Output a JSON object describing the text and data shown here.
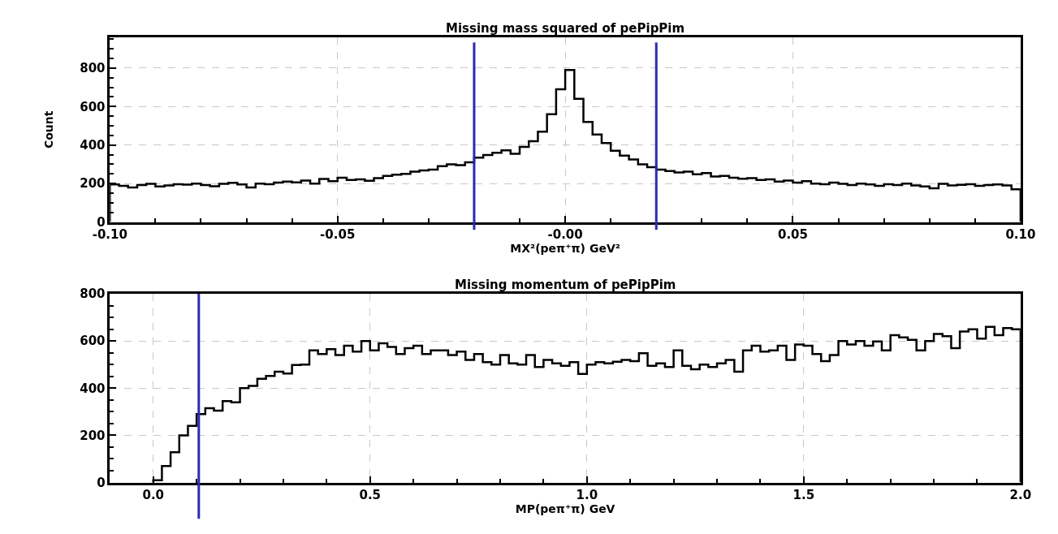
{
  "chart_data": [
    {
      "type": "histogram",
      "title": "Missing mass squared of pePipPim",
      "xlabel": "MX²(peπ⁺π) GeV²",
      "ylabel": "Count",
      "bins": [
        -0.1,
        -0.098,
        -0.096,
        -0.094,
        -0.092,
        -0.09,
        -0.088,
        -0.086,
        -0.084,
        -0.082,
        -0.08,
        -0.078,
        -0.076,
        -0.074,
        -0.072,
        -0.07,
        -0.068,
        -0.066,
        -0.064,
        -0.062,
        -0.06,
        -0.058,
        -0.056,
        -0.054,
        -0.052,
        -0.05,
        -0.048,
        -0.046,
        -0.044,
        -0.042,
        -0.04,
        -0.038,
        -0.036,
        -0.034,
        -0.032,
        -0.03,
        -0.028,
        -0.026,
        -0.024,
        -0.022,
        -0.02,
        -0.018,
        -0.016,
        -0.014,
        -0.012,
        -0.01,
        -0.008,
        -0.006,
        -0.004,
        -0.002,
        0,
        0.002,
        0.004,
        0.006,
        0.008,
        0.01,
        0.012,
        0.014,
        0.016,
        0.018,
        0.02,
        0.022,
        0.024,
        0.026,
        0.028,
        0.03,
        0.032,
        0.034,
        0.036,
        0.038,
        0.04,
        0.042,
        0.044,
        0.046,
        0.048,
        0.05,
        0.052,
        0.054,
        0.056,
        0.058,
        0.06,
        0.062,
        0.064,
        0.066,
        0.068,
        0.07,
        0.072,
        0.074,
        0.076,
        0.078,
        0.08,
        0.082,
        0.084,
        0.086,
        0.088,
        0.09,
        0.092,
        0.094,
        0.096,
        0.098,
        0.1
      ],
      "values": [
        195,
        188,
        180,
        192,
        198,
        185,
        190,
        196,
        194,
        200,
        192,
        186,
        198,
        204,
        195,
        180,
        200,
        196,
        205,
        210,
        206,
        215,
        200,
        224,
        212,
        230,
        218,
        222,
        214,
        228,
        240,
        246,
        250,
        262,
        268,
        272,
        290,
        300,
        296,
        310,
        335,
        348,
        360,
        372,
        355,
        390,
        420,
        470,
        560,
        690,
        790,
        640,
        520,
        455,
        410,
        370,
        345,
        325,
        300,
        285,
        272,
        265,
        258,
        262,
        248,
        254,
        236,
        240,
        230,
        225,
        228,
        218,
        222,
        210,
        215,
        205,
        212,
        200,
        196,
        205,
        198,
        192,
        200,
        195,
        188,
        196,
        192,
        200,
        190,
        185,
        175,
        198,
        190,
        193,
        196,
        188,
        192,
        195,
        190,
        170
      ],
      "color": "#000000",
      "xlim": [
        -0.1,
        0.1
      ],
      "ylim": [
        0,
        960
      ],
      "xticks": [
        {
          "value": -0.1,
          "label": "-0.10"
        },
        {
          "value": -0.05,
          "label": "-0.05"
        },
        {
          "value": 0,
          "label": "-0.00"
        },
        {
          "value": 0.05,
          "label": "0.05"
        },
        {
          "value": 0.1,
          "label": "0.10"
        }
      ],
      "yticks": [
        0,
        200,
        400,
        600,
        800
      ],
      "grid": true,
      "ref_lines": [
        {
          "axis": "x",
          "value": -0.02,
          "color": "#2a2ab0"
        },
        {
          "axis": "x",
          "value": 0.02,
          "color": "#2a2ab0"
        }
      ]
    },
    {
      "type": "histogram",
      "title": "Missing momentum of pePipPim",
      "xlabel": "MP(peπ⁺π) GeV",
      "bins": [
        0,
        0.02,
        0.04,
        0.06,
        0.08,
        0.1,
        0.12,
        0.14,
        0.16,
        0.18,
        0.2,
        0.22,
        0.24,
        0.26,
        0.28,
        0.3,
        0.32,
        0.34,
        0.36,
        0.38,
        0.4,
        0.42,
        0.44,
        0.46,
        0.48,
        0.5,
        0.52,
        0.54,
        0.56,
        0.58,
        0.6,
        0.62,
        0.64,
        0.66,
        0.68,
        0.7,
        0.72,
        0.74,
        0.76,
        0.78,
        0.8,
        0.82,
        0.84,
        0.86,
        0.88,
        0.9,
        0.92,
        0.94,
        0.96,
        0.98,
        1.0,
        1.02,
        1.04,
        1.06,
        1.08,
        1.1,
        1.12,
        1.14,
        1.16,
        1.18,
        1.2,
        1.22,
        1.24,
        1.26,
        1.28,
        1.3,
        1.32,
        1.34,
        1.36,
        1.38,
        1.4,
        1.42,
        1.44,
        1.46,
        1.48,
        1.5,
        1.52,
        1.54,
        1.56,
        1.58,
        1.6,
        1.62,
        1.64,
        1.66,
        1.68,
        1.7,
        1.72,
        1.74,
        1.76,
        1.78,
        1.8,
        1.82,
        1.84,
        1.86,
        1.88,
        1.9,
        1.92,
        1.94,
        1.96,
        1.98,
        2.0
      ],
      "values": [
        10,
        70,
        128,
        200,
        240,
        290,
        315,
        305,
        345,
        340,
        400,
        410,
        440,
        452,
        470,
        462,
        498,
        500,
        560,
        545,
        565,
        540,
        580,
        555,
        600,
        560,
        590,
        575,
        545,
        570,
        580,
        545,
        560,
        560,
        540,
        555,
        520,
        545,
        510,
        500,
        540,
        505,
        500,
        540,
        490,
        520,
        505,
        495,
        510,
        460,
        500,
        510,
        505,
        512,
        520,
        515,
        548,
        495,
        505,
        490,
        560,
        495,
        480,
        500,
        490,
        505,
        520,
        470,
        560,
        580,
        555,
        560,
        580,
        520,
        585,
        580,
        545,
        515,
        540,
        600,
        585,
        600,
        580,
        598,
        560,
        625,
        615,
        605,
        560,
        600,
        630,
        620,
        570,
        640,
        650,
        610,
        660,
        625,
        655,
        650
      ],
      "color": "#000000",
      "xlim": [
        -0.1,
        2.0
      ],
      "ylim": [
        0,
        800
      ],
      "xticks": [
        {
          "value": 0,
          "label": "0.0"
        },
        {
          "value": 0.5,
          "label": "0.5"
        },
        {
          "value": 1.0,
          "label": "1.0"
        },
        {
          "value": 1.5,
          "label": "1.5"
        },
        {
          "value": 2.0,
          "label": "2.0"
        }
      ],
      "yticks": [
        0,
        200,
        400,
        600,
        800
      ],
      "grid": true,
      "ref_lines": [
        {
          "axis": "x",
          "value": 0.105,
          "color": "#2a2ab0"
        }
      ]
    }
  ]
}
